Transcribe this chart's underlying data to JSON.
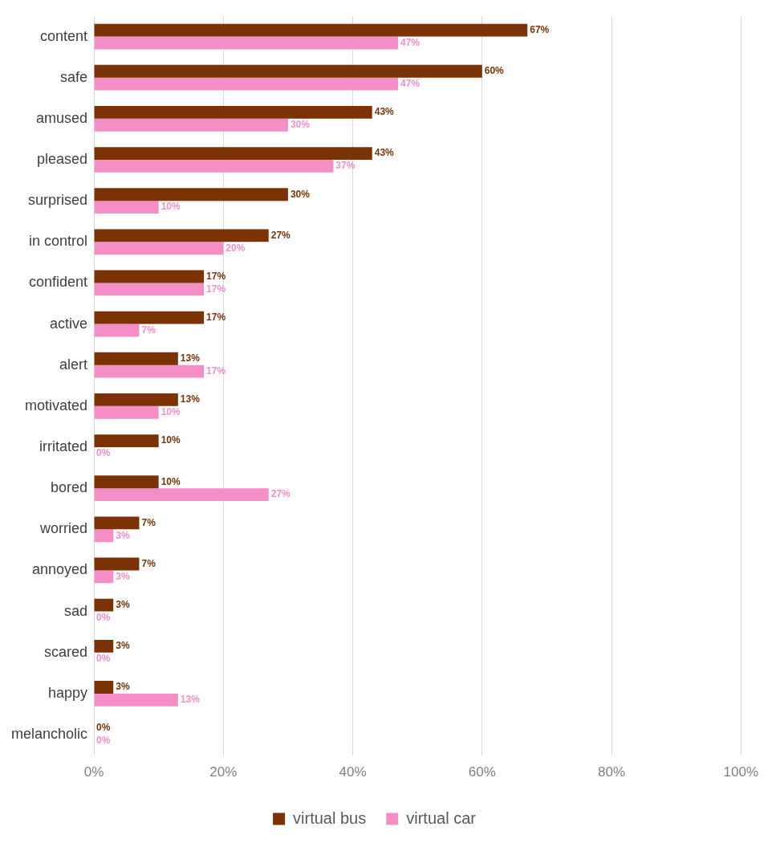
{
  "chart_data": {
    "type": "bar",
    "orientation": "horizontal",
    "categories": [
      "content",
      "safe",
      "amused",
      "pleased",
      "surprised",
      "in control",
      "confident",
      "active",
      "alert",
      "motivated",
      "irritated",
      "bored",
      "worried",
      "annoyed",
      "sad",
      "scared",
      "happy",
      "melancholic"
    ],
    "series": [
      {
        "name": "virtual bus",
        "color": "#7b3306",
        "values": [
          67,
          60,
          43,
          43,
          30,
          27,
          17,
          17,
          13,
          13,
          10,
          10,
          7,
          7,
          3,
          3,
          3,
          0
        ],
        "value_labels": [
          "67%",
          "60%",
          "43%",
          "43%",
          "30%",
          "27%",
          "17%",
          "17%",
          "13%",
          "13%",
          "10%",
          "10%",
          "7%",
          "7%",
          "3%",
          "3%",
          "3%",
          "0%"
        ]
      },
      {
        "name": "virtual car",
        "color": "#f58ec6",
        "values": [
          47,
          47,
          30,
          37,
          10,
          20,
          17,
          7,
          17,
          10,
          0,
          27,
          3,
          3,
          0,
          0,
          13,
          0
        ],
        "value_labels": [
          "47%",
          "47%",
          "30%",
          "37%",
          "10%",
          "20%",
          "17%",
          "7%",
          "17%",
          "10%",
          "0%",
          "27%",
          "3%",
          "3%",
          "0%",
          "0%",
          "13%",
          "0%"
        ]
      }
    ],
    "xlim": [
      0,
      100
    ],
    "xticks": [
      {
        "value": 0,
        "label": "0%"
      },
      {
        "value": 20,
        "label": "20%"
      },
      {
        "value": 40,
        "label": "40%"
      },
      {
        "value": 60,
        "label": "60%"
      },
      {
        "value": 80,
        "label": "80%"
      },
      {
        "value": 100,
        "label": "100%"
      }
    ],
    "grid": "x",
    "legend": "bottom"
  }
}
